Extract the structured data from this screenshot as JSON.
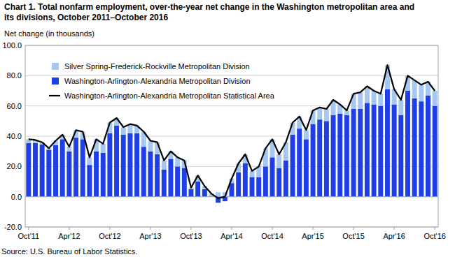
{
  "chart_data": {
    "type": "bar",
    "title": "Chart 1. Total nonfarm employment, over-the-year net change in the Washington metropolitan area and its divisions, October 2011–October 2016",
    "y_label": "Net change (in thousands)",
    "source": "Source: U.S. Bureau of Labor Statistics.",
    "categories": [
      "Oct'11",
      null,
      null,
      null,
      null,
      null,
      "Apr'12",
      null,
      null,
      null,
      null,
      null,
      "Oct'12",
      null,
      null,
      null,
      null,
      null,
      "Apr'13",
      null,
      null,
      null,
      null,
      null,
      "Oct'13",
      null,
      null,
      null,
      null,
      null,
      "Apr'14",
      null,
      null,
      null,
      null,
      null,
      "Oct'14",
      null,
      null,
      null,
      null,
      null,
      "Apr'15",
      null,
      null,
      null,
      null,
      null,
      "Oct'15",
      null,
      null,
      null,
      null,
      null,
      "Apr'16",
      null,
      null,
      null,
      null,
      null,
      "Oct'16"
    ],
    "series": [
      {
        "name": "Silver Spring-Frederick-Rockville Metropolitan Division",
        "type": "bar",
        "color": "#a6c8f0",
        "values": [
          2.5,
          2,
          1.5,
          1,
          3,
          3,
          3,
          5,
          5,
          5,
          8,
          6,
          7,
          5,
          5,
          6,
          5,
          10,
          7,
          8,
          6,
          5,
          6,
          5,
          1,
          4,
          2,
          2,
          3,
          3,
          3,
          6,
          6,
          4,
          7,
          12,
          12,
          9,
          12,
          8,
          8,
          6,
          9,
          8,
          8,
          10,
          6,
          3,
          10,
          11,
          11,
          9,
          8,
          16,
          10,
          10,
          10,
          12,
          11,
          9,
          10
        ]
      },
      {
        "name": "Washington-Arlington-Alexandria Metropolitan Division",
        "type": "bar",
        "color": "#1e3ee6",
        "values": [
          35.5,
          35.5,
          34.5,
          31,
          34,
          38,
          30,
          39,
          38,
          21,
          30,
          29,
          42,
          47,
          41,
          42,
          42,
          33,
          30,
          28,
          18,
          25,
          20,
          19,
          5,
          10,
          5,
          0,
          -4,
          -3,
          9,
          16,
          22,
          13,
          13,
          20,
          26,
          19,
          24,
          41,
          45,
          38,
          48,
          51,
          50,
          54,
          55,
          54,
          58,
          58,
          62,
          61,
          60,
          71,
          61,
          54,
          70,
          65,
          63,
          67,
          60
        ]
      },
      {
        "name": "Washington-Arlington-Alexandria Metropolitan Statistical Area",
        "type": "line",
        "color": "#000000",
        "values": [
          38,
          37.5,
          36,
          32,
          37,
          41,
          33,
          44,
          43,
          26,
          38,
          35,
          49,
          52,
          46,
          48,
          47,
          43,
          37,
          36,
          24,
          30,
          26,
          24,
          6,
          14,
          7,
          2,
          -1,
          0,
          12,
          22,
          28,
          17,
          20,
          32,
          38,
          28,
          36,
          49,
          53,
          44,
          57,
          59,
          58,
          64,
          61,
          57,
          68,
          69,
          73,
          70,
          68,
          87,
          71,
          64,
          80,
          77,
          74,
          76,
          70
        ]
      }
    ],
    "ylim": [
      -20,
      100
    ],
    "yticks": [
      {
        "value": -20,
        "label": "-20.0"
      },
      {
        "value": 0,
        "label": "0.0"
      },
      {
        "value": 20,
        "label": "20.0"
      },
      {
        "value": 40,
        "label": "40.0"
      },
      {
        "value": 60,
        "label": "60.0"
      },
      {
        "value": 80,
        "label": "80.0"
      },
      {
        "value": 100,
        "label": "100.0"
      }
    ],
    "grid": true,
    "stacked": true,
    "legend": "top-left"
  }
}
